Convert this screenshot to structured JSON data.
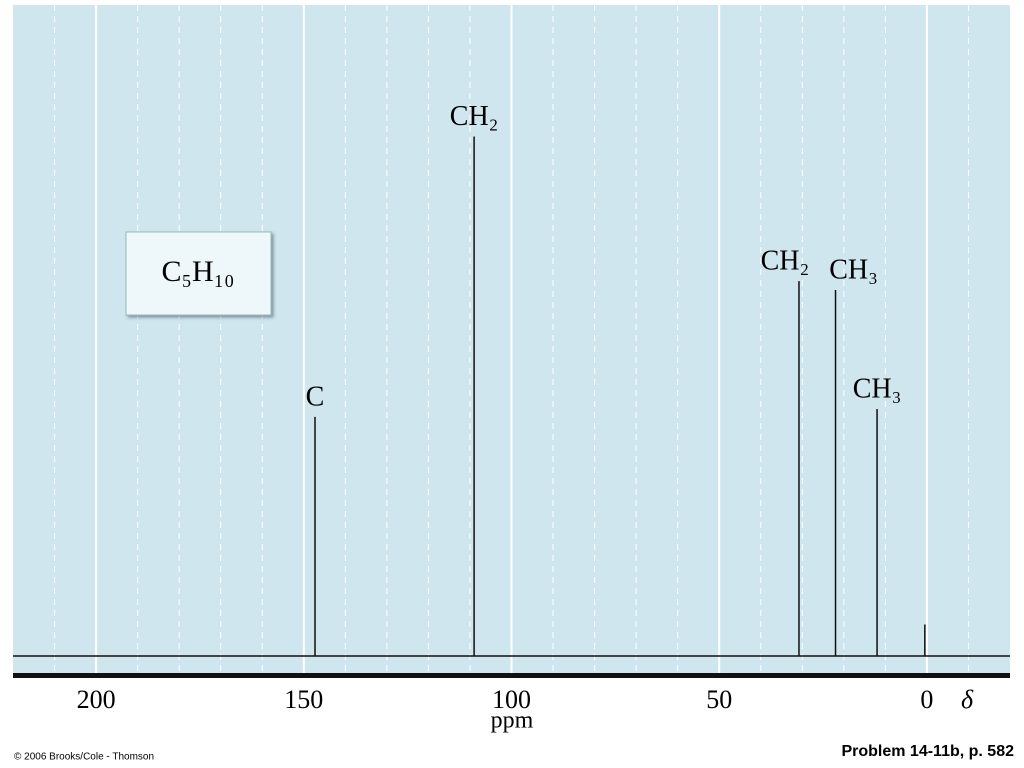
{
  "chart_data": {
    "type": "spectrum",
    "peak_labels": [
      "C",
      "CH₂",
      "CH₂",
      "CH₃",
      "CH₃",
      null
    ],
    "x": [
      147.3,
      109.0,
      30.8,
      22.0,
      12.0,
      0.5
    ],
    "values": [
      243,
      528,
      381,
      372,
      251,
      32
    ],
    "color": "#111111",
    "xlim": [
      220,
      -20
    ],
    "xticks": [
      200,
      150,
      100,
      50,
      0
    ],
    "xgrid_minor": [
      210,
      190,
      180,
      170,
      160,
      140,
      130,
      120,
      110,
      90,
      80,
      70,
      60,
      40,
      30,
      20,
      10,
      -10
    ],
    "ylim": [
      0,
      560
    ],
    "grid": true,
    "xlabel": "ppm",
    "x_symbol": "δ",
    "annotation": "C₅H₁₀"
  },
  "footer": {
    "copyright": "© 2006 Brooks/Cole - Thomson",
    "reference": "Problem 14-11b, p. 582"
  }
}
